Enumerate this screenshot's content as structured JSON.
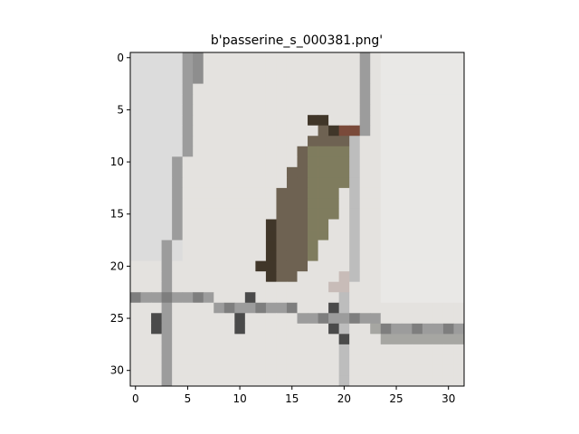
{
  "chart_data": {
    "type": "image",
    "title": "b'passerine_s_000381.png'",
    "xlabel": "",
    "ylabel": "",
    "xlim": [
      -0.5,
      31.5
    ],
    "ylim": [
      31.5,
      -0.5
    ],
    "x_ticks": [
      0,
      5,
      10,
      15,
      20,
      25,
      30
    ],
    "y_ticks": [
      0,
      5,
      10,
      15,
      20,
      25,
      30
    ],
    "x_tick_labels": [
      "0",
      "5",
      "10",
      "15",
      "20",
      "25",
      "30"
    ],
    "y_tick_labels": [
      "0",
      "5",
      "10",
      "15",
      "20",
      "25",
      "30"
    ],
    "image_grid": [
      32,
      32
    ],
    "image_subject": "small brown passerine bird perched on grey branches against a pale background",
    "colors": {
      "background": "#e4e2df",
      "branch": "#9c9c9c",
      "branch_dark": "#4a4a4a",
      "bird_body": "#6e6252",
      "bird_dark": "#403629",
      "bird_olive": "#7f7c5e",
      "bird_red": "#7a4a3a",
      "leg": "#c8bcb8"
    }
  }
}
